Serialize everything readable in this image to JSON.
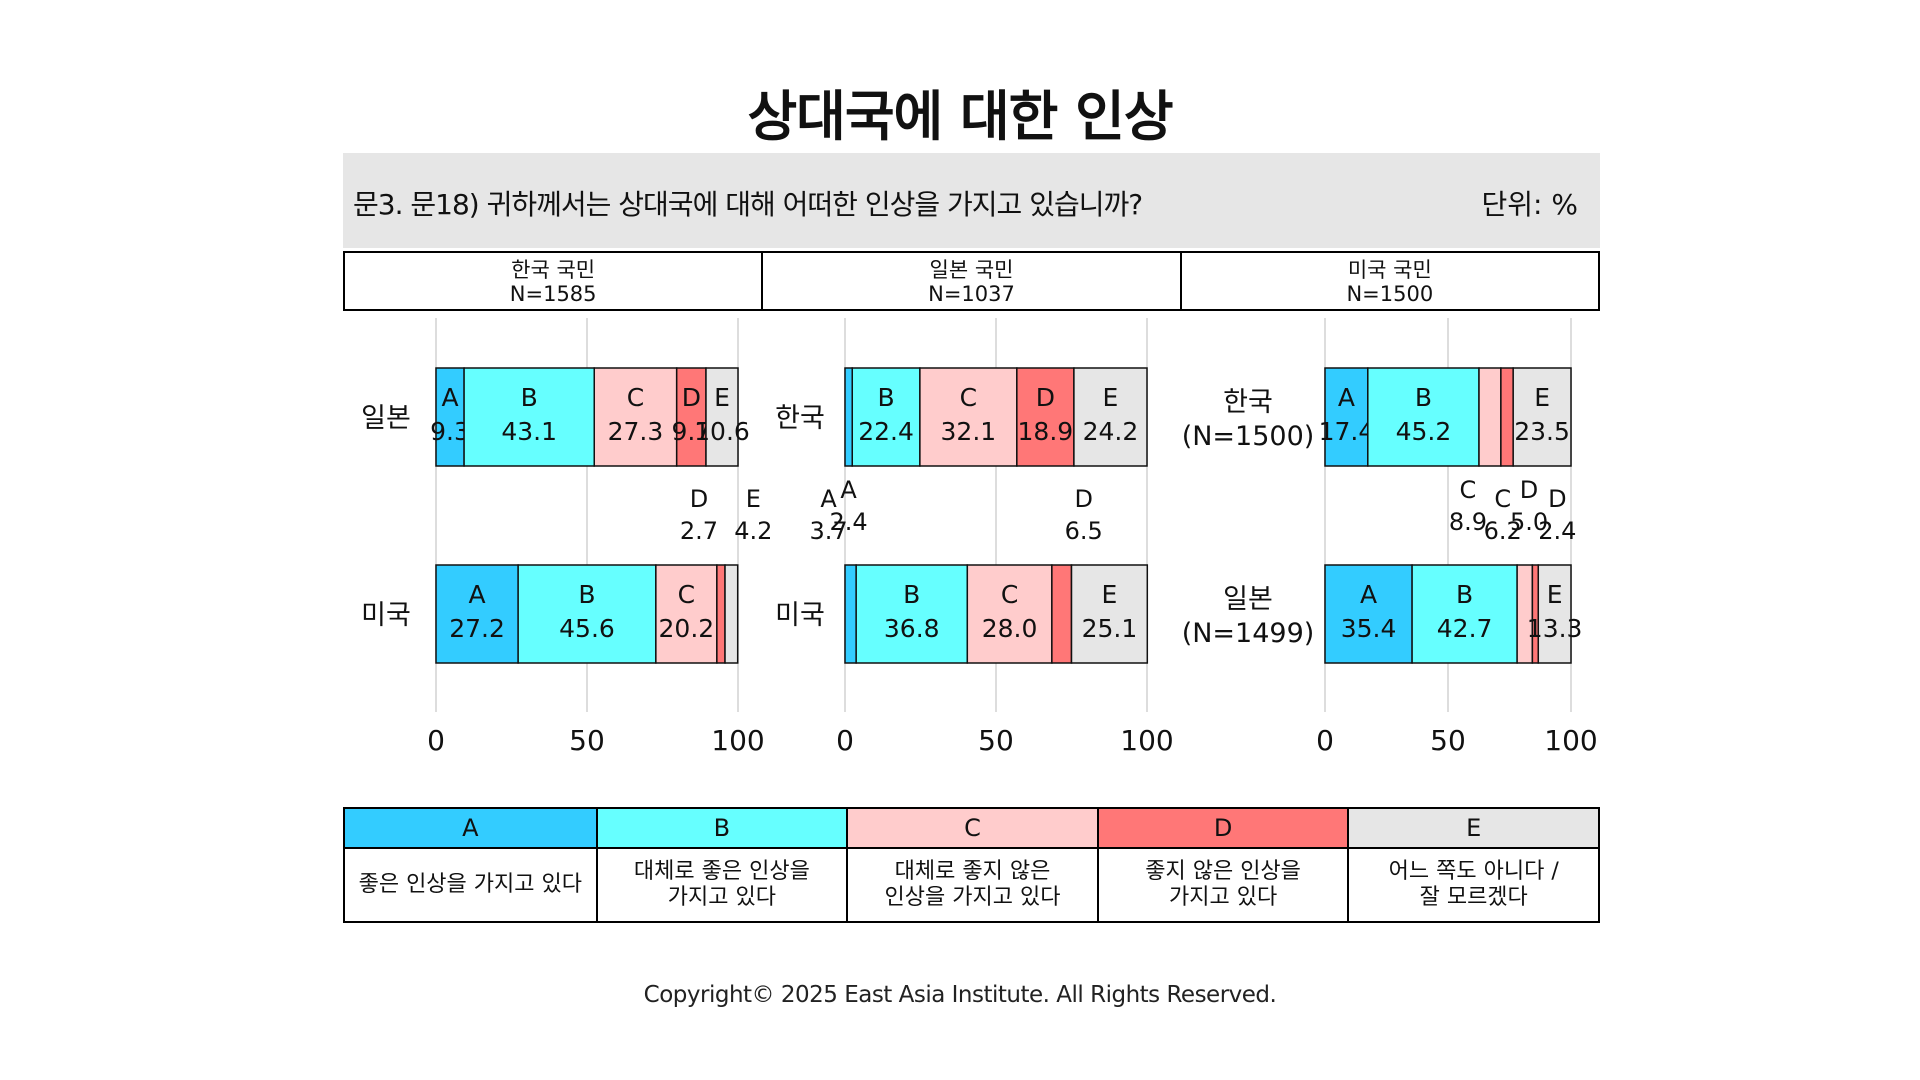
{
  "title": "상대국에 대한 인상",
  "question": "문3. 문18) 귀하께서는 상대국에 대해 어떠한 인상을 가지고 있습니까?",
  "unit": "단위: %",
  "colors": {
    "A": "#33ccff",
    "B": "#66ffff",
    "C": "#ffcccc",
    "D": "#ff7777",
    "E": "#e6e6e6"
  },
  "panels": [
    {
      "group": "한국 국민",
      "n": "N=1585"
    },
    {
      "group": "일본 국민",
      "n": "N=1037"
    },
    {
      "group": "미국 국민",
      "n": "N=1500"
    }
  ],
  "legend": [
    {
      "key": "A",
      "label": "좋은 인상을 가지고 있다"
    },
    {
      "key": "B",
      "label": "대체로 좋은 인상을\n가지고 있다"
    },
    {
      "key": "C",
      "label": "대체로 좋지 않은\n인상을 가지고 있다"
    },
    {
      "key": "D",
      "label": "좋지 않은 인상을\n가지고 있다"
    },
    {
      "key": "E",
      "label": "어느 쪽도 아니다 /\n잘 모르겠다"
    }
  ],
  "copyright": "Copyright© 2025 East Asia Institute. All Rights Reserved.",
  "chart_data": [
    {
      "type": "bar",
      "stacked": true,
      "orientation": "horizontal",
      "series_keys": [
        "A",
        "B",
        "C",
        "D",
        "E"
      ],
      "categories": [
        "일본",
        "미국"
      ],
      "rows": [
        [
          9.3,
          43.1,
          27.3,
          9.7,
          10.6
        ],
        [
          27.2,
          45.6,
          20.2,
          2.7,
          4.2
        ]
      ],
      "xlim": [
        0,
        100
      ],
      "xticks": [
        "0",
        "50",
        "100"
      ],
      "grid": true
    },
    {
      "type": "bar",
      "stacked": true,
      "orientation": "horizontal",
      "series_keys": [
        "A",
        "B",
        "C",
        "D",
        "E"
      ],
      "categories": [
        "한국",
        "미국"
      ],
      "rows": [
        [
          2.4,
          22.4,
          32.1,
          18.9,
          24.2
        ],
        [
          3.7,
          36.8,
          28.0,
          6.5,
          25.1
        ]
      ],
      "xlim": [
        0,
        100
      ],
      "xticks": [
        "0",
        "50",
        "100"
      ],
      "grid": true
    },
    {
      "type": "bar",
      "stacked": true,
      "orientation": "horizontal",
      "series_keys": [
        "A",
        "B",
        "C",
        "D",
        "E"
      ],
      "categories": [
        "한국\n(N=1500)",
        "일본\n(N=1499)"
      ],
      "rows": [
        [
          17.4,
          45.2,
          8.9,
          5.0,
          23.5
        ],
        [
          35.4,
          42.7,
          6.2,
          2.4,
          13.3
        ]
      ],
      "xlim": [
        0,
        100
      ],
      "xticks": [
        "0",
        "50",
        "100"
      ],
      "grid": true
    }
  ]
}
